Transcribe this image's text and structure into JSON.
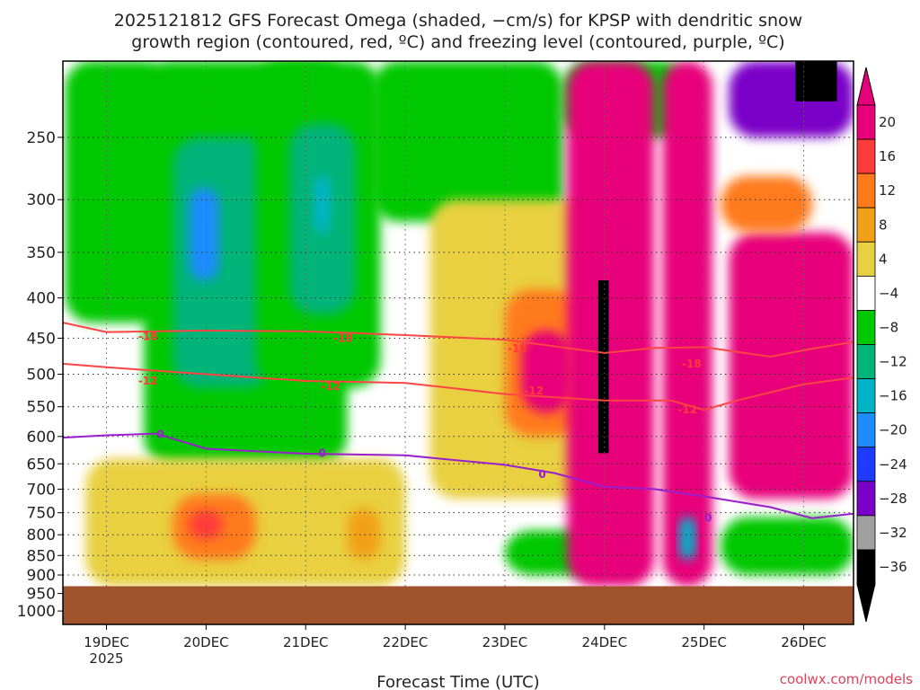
{
  "chart_data": {
    "type": "heatmap",
    "title_line1": "2025121812 GFS Forecast Omega (shaded, −cm/s) for KPSP with dendritic snow",
    "title_line2": "growth region (contoured, red, ºC) and freezing level (contoured, purple, ºC)",
    "xlabel": "Forecast Time (UTC)",
    "watermark": "coolwx.com/models",
    "x_ticks": [
      "19DEC",
      "20DEC",
      "21DEC",
      "22DEC",
      "23DEC",
      "24DEC",
      "25DEC",
      "26DEC"
    ],
    "x_year": "2025",
    "x_range_hours": [
      -10.5,
      180
    ],
    "y_ticks": [
      250,
      300,
      350,
      400,
      450,
      500,
      550,
      600,
      650,
      700,
      750,
      800,
      850,
      900,
      950,
      1000
    ],
    "y_range_hpa": [
      200,
      1040
    ],
    "y_scale": "log-pressure",
    "ground_pressure_hpa": 930,
    "colorbar": {
      "labels": [
        "20",
        "16",
        "12",
        "8",
        "4",
        "−4",
        "−8",
        "−12",
        "−16",
        "−20",
        "−24",
        "−28",
        "−32",
        "−36"
      ],
      "colors": [
        "#e8007a",
        "#ff3a3a",
        "#ff7a1a",
        "#f2a018",
        "#e8d040",
        "#ffffff",
        "#00c800",
        "#00b47a",
        "#00b4c8",
        "#1e8cff",
        "#1e3cff",
        "#7a00c8",
        "#a0a0a0",
        "#000000"
      ],
      "top_color": "#e8007a",
      "bottom_color": "#000000"
    },
    "contours": [
      {
        "label": "-18",
        "color": "#ff4444",
        "points": [
          [
            -10.5,
            430
          ],
          [
            0,
            442
          ],
          [
            24,
            440
          ],
          [
            48,
            441
          ],
          [
            72,
            446
          ],
          [
            96,
            452
          ],
          [
            120,
            470
          ],
          [
            132,
            463
          ],
          [
            144,
            462
          ],
          [
            160,
            475
          ],
          [
            170,
            464
          ],
          [
            180,
            455
          ]
        ]
      },
      {
        "label": "-12",
        "color": "#ff4444",
        "points": [
          [
            -10.5,
            485
          ],
          [
            0,
            490
          ],
          [
            24,
            500
          ],
          [
            48,
            510
          ],
          [
            72,
            513
          ],
          [
            96,
            530
          ],
          [
            120,
            540
          ],
          [
            136,
            540
          ],
          [
            144,
            555
          ],
          [
            152,
            540
          ],
          [
            168,
            515
          ],
          [
            180,
            505
          ]
        ]
      },
      {
        "label": "0",
        "color": "#9a1ecc",
        "points": [
          [
            -10.5,
            602
          ],
          [
            0,
            598
          ],
          [
            12,
            595
          ],
          [
            24,
            622
          ],
          [
            48,
            631
          ],
          [
            72,
            634
          ],
          [
            96,
            652
          ],
          [
            108,
            668
          ],
          [
            120,
            695
          ],
          [
            132,
            700
          ],
          [
            144,
            715
          ],
          [
            160,
            738
          ],
          [
            170,
            762
          ],
          [
            180,
            752
          ]
        ]
      }
    ],
    "contour_labels": [
      {
        "text": "-18",
        "x": 10,
        "y": 448
      },
      {
        "text": "-12",
        "x": 10,
        "y": 510
      },
      {
        "text": "0",
        "x": 13,
        "y": 596
      },
      {
        "text": "-18",
        "x": 57,
        "y": 450
      },
      {
        "text": "-12",
        "x": 54,
        "y": 518
      },
      {
        "text": "0",
        "x": 52,
        "y": 630
      },
      {
        "text": "-18",
        "x": 99,
        "y": 464
      },
      {
        "text": "-12",
        "x": 103,
        "y": 525
      },
      {
        "text": "0",
        "x": 105,
        "y": 670
      },
      {
        "text": "-18",
        "x": 141,
        "y": 485
      },
      {
        "text": "-12",
        "x": 140,
        "y": 555
      },
      {
        "text": "0",
        "x": 145,
        "y": 762
      }
    ],
    "shaded_regions_approx": [
      {
        "value": 0,
        "x": [
          -10.5,
          180
        ],
        "p": [
          200,
          930
        ]
      },
      {
        "value": -8,
        "x": [
          -10,
          15
        ],
        "p": [
          200,
          430
        ]
      },
      {
        "value": -8,
        "x": [
          9,
          58
        ],
        "p": [
          200,
          650
        ]
      },
      {
        "value": -12,
        "x": [
          16,
          40
        ],
        "p": [
          250,
          520
        ]
      },
      {
        "value": -20,
        "x": [
          20,
          27
        ],
        "p": [
          290,
          380
        ]
      },
      {
        "value": -8,
        "x": [
          36,
          66
        ],
        "p": [
          200,
          520
        ]
      },
      {
        "value": -12,
        "x": [
          44,
          60
        ],
        "p": [
          240,
          420
        ]
      },
      {
        "value": -16,
        "x": [
          50,
          54
        ],
        "p": [
          280,
          330
        ]
      },
      {
        "value": -8,
        "x": [
          64,
          110
        ],
        "p": [
          200,
          320
        ]
      },
      {
        "value": -8,
        "x": [
          110,
          140
        ],
        "p": [
          200,
          250
        ]
      },
      {
        "value": 4,
        "x": [
          -5,
          72
        ],
        "p": [
          640,
          930
        ]
      },
      {
        "value": 12,
        "x": [
          16,
          36
        ],
        "p": [
          710,
          860
        ]
      },
      {
        "value": 16,
        "x": [
          20,
          28
        ],
        "p": [
          745,
          810
        ]
      },
      {
        "value": 8,
        "x": [
          58,
          66
        ],
        "p": [
          740,
          860
        ]
      },
      {
        "value": 4,
        "x": [
          78,
          120
        ],
        "p": [
          300,
          720
        ]
      },
      {
        "value": 12,
        "x": [
          96,
          114
        ],
        "p": [
          390,
          600
        ]
      },
      {
        "value": 20,
        "x": [
          100,
          112
        ],
        "p": [
          440,
          560
        ]
      },
      {
        "value": -8,
        "x": [
          96,
          120
        ],
        "p": [
          790,
          900
        ]
      },
      {
        "value": 20,
        "x": [
          111,
          132
        ],
        "p": [
          200,
          930
        ]
      },
      {
        "value": -36,
        "x": [
          118.5,
          121
        ],
        "p": [
          380,
          630
        ]
      },
      {
        "value": 20,
        "x": [
          134,
          146
        ],
        "p": [
          200,
          930
        ]
      },
      {
        "value": -16,
        "x": [
          138,
          142
        ],
        "p": [
          760,
          860
        ]
      },
      {
        "value": 20,
        "x": [
          150,
          180
        ],
        "p": [
          330,
          720
        ]
      },
      {
        "value": 12,
        "x": [
          148,
          170
        ],
        "p": [
          280,
          330
        ]
      },
      {
        "value": -28,
        "x": [
          150,
          180
        ],
        "p": [
          200,
          250
        ]
      },
      {
        "value": -36,
        "x": [
          166,
          176
        ],
        "p": [
          200,
          225
        ]
      },
      {
        "value": -8,
        "x": [
          148,
          180
        ],
        "p": [
          760,
          900
        ]
      }
    ]
  }
}
